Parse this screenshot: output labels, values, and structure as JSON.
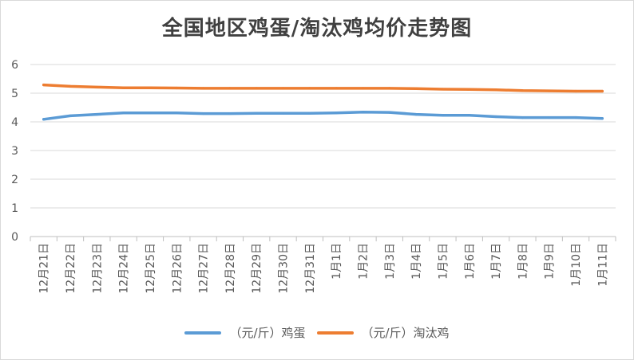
{
  "chart_data": {
    "type": "line",
    "title": "全国地区鸡蛋/淘汰鸡均价走势图",
    "xlabel": "",
    "ylabel": "",
    "ylim": [
      0,
      6
    ],
    "yticks": [
      "0",
      "1",
      "2",
      "3",
      "4",
      "5",
      "6"
    ],
    "grid": "horizontal",
    "legend_position": "bottom",
    "categories": [
      "12月21日",
      "12月22日",
      "12月23日",
      "12月24日",
      "12月25日",
      "12月26日",
      "12月27日",
      "12月28日",
      "12月29日",
      "12月30日",
      "12月31日",
      "1月1日",
      "1月2日",
      "1月3日",
      "1月4日",
      "1月5日",
      "1月6日",
      "1月7日",
      "1月8日",
      "1月9日",
      "1月10日",
      "1月11日"
    ],
    "series": [
      {
        "name": "（元/斤）鸡蛋",
        "color": "#5b9bd5",
        "values": [
          4.09,
          4.21,
          4.26,
          4.31,
          4.31,
          4.31,
          4.29,
          4.29,
          4.3,
          4.3,
          4.3,
          4.31,
          4.34,
          4.33,
          4.26,
          4.23,
          4.23,
          4.18,
          4.15,
          4.15,
          4.15,
          4.12
        ]
      },
      {
        "name": "（元/斤）淘汰鸡",
        "color": "#ed7d31",
        "values": [
          5.29,
          5.24,
          5.21,
          5.19,
          5.19,
          5.18,
          5.17,
          5.17,
          5.17,
          5.17,
          5.17,
          5.17,
          5.17,
          5.17,
          5.16,
          5.14,
          5.13,
          5.12,
          5.09,
          5.08,
          5.07,
          5.07
        ]
      }
    ]
  }
}
